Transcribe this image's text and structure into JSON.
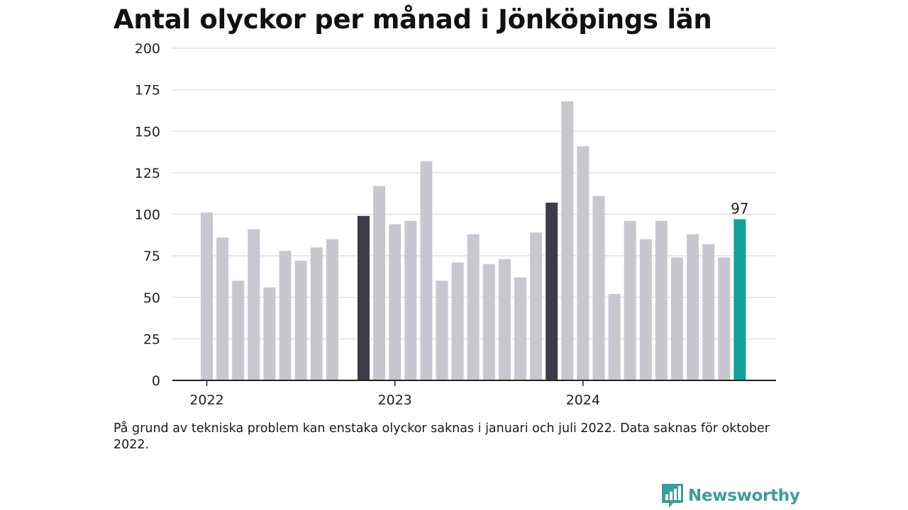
{
  "chart_data": {
    "type": "bar",
    "title": "Antal olyckor per månad i Jönköpings län",
    "xlabel": "",
    "ylabel": "",
    "ylim": [
      0,
      200
    ],
    "yticks": [
      0,
      25,
      50,
      75,
      100,
      125,
      150,
      175,
      200
    ],
    "ytick_labels": [
      "0",
      "25",
      "50",
      "75",
      "100",
      "125",
      "150",
      "175",
      "200"
    ],
    "grid": true,
    "legend": "none",
    "categories": [
      "2022-01",
      "2022-02",
      "2022-03",
      "2022-04",
      "2022-05",
      "2022-06",
      "2022-07",
      "2022-08",
      "2022-09",
      "2022-10",
      "2022-11",
      "2022-12",
      "2023-01",
      "2023-02",
      "2023-03",
      "2023-04",
      "2023-05",
      "2023-06",
      "2023-07",
      "2023-08",
      "2023-09",
      "2023-10",
      "2023-11",
      "2023-12",
      "2024-01",
      "2024-02",
      "2024-03",
      "2024-04",
      "2024-05",
      "2024-06",
      "2024-07",
      "2024-08",
      "2024-09",
      "2024-10",
      "2024-11",
      "2024-12"
    ],
    "values": [
      101,
      86,
      60,
      91,
      56,
      78,
      72,
      80,
      85,
      null,
      99,
      117,
      94,
      96,
      132,
      60,
      71,
      88,
      70,
      73,
      62,
      89,
      107,
      168,
      141,
      111,
      52,
      96,
      85,
      96,
      74,
      88,
      82,
      74,
      97,
      null
    ],
    "highlight": {
      "dark_indices": [
        10,
        22
      ],
      "accent_index": 34
    },
    "x_tick_labels": [
      {
        "label": "2022",
        "index": 0
      },
      {
        "label": "2023",
        "index": 12
      },
      {
        "label": "2024",
        "index": 24
      }
    ],
    "value_labels": [
      {
        "index": 34,
        "text": "97"
      }
    ],
    "colors": {
      "bar": "#c8c7cf",
      "bar_dark": "#3f3c4a",
      "bar_accent": "#0fa39a",
      "grid": "#dcdcdc",
      "axis": "#222222",
      "text": "#222222"
    }
  },
  "footnote": "På grund av tekniska problem kan enstaka olyckor saknas i januari och juli 2022. Data saknas för oktober 2022.",
  "brand": {
    "name": "Newsworthy",
    "icon": "newsworthy-logo-icon",
    "color": "#3a9f96"
  }
}
